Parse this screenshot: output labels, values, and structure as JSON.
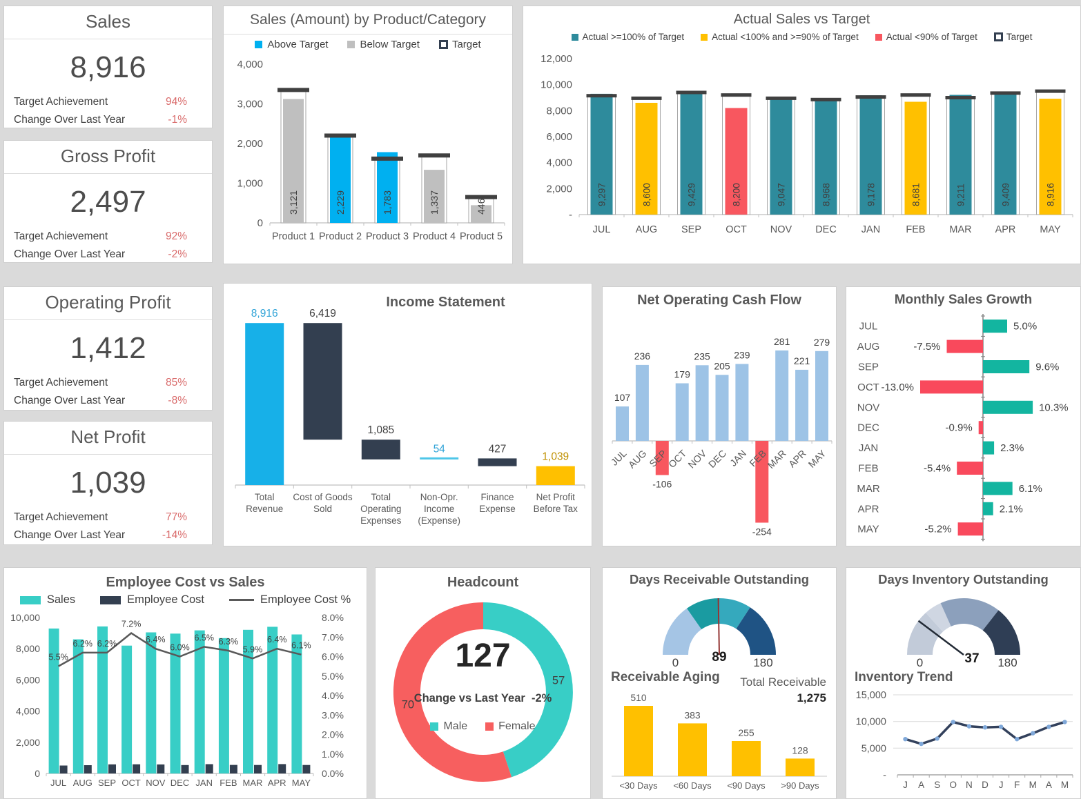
{
  "colors": {
    "teal": "#2E8B9C",
    "gold": "#FFC000",
    "red": "#F8575F",
    "blue": "#00B0F0",
    "gray_bar": "#BFBFBF",
    "dark_navy": "#333F50",
    "target_tick": "#404040",
    "blue_bright": "#17B0E8",
    "income_line": "#4EC6E8",
    "label_blue": "#2FA3D7",
    "label_gold": "#BF9000",
    "light_blue": "#9DC3E6",
    "green": "#13B5A0",
    "growth_red": "#F9495C",
    "turquoise": "#38CEC6",
    "hc_red": "#F75F5F",
    "kpi_red": "#D96A6A",
    "trend_navy": "#33415C",
    "trend_marker": "#7FA8D9",
    "gauge_dro": [
      "#A5C5E5",
      "#1A9BA1",
      "#35A9BD",
      "#1F5384"
    ],
    "gauge_dio": [
      "#C2CBD9",
      "#CFD6E2",
      "#8CA0BC",
      "#2F3E55"
    ],
    "needle_dro": "#943634",
    "needle_dio": "#222A35"
  },
  "kpi_cards": [
    {
      "title": "Sales",
      "value": "8,916",
      "rows": [
        {
          "label": "Target Achievement",
          "value": "94%"
        },
        {
          "label": "Change Over Last Year",
          "value": "-1%"
        }
      ]
    },
    {
      "title": "Gross Profit",
      "value": "2,497",
      "rows": [
        {
          "label": "Target Achievement",
          "value": "92%"
        },
        {
          "label": "Change Over Last Year",
          "value": "-2%"
        }
      ]
    },
    {
      "title": "Operating Profit",
      "value": "1,412",
      "rows": [
        {
          "label": "Target Achievement",
          "value": "85%"
        },
        {
          "label": "Change Over Last Year",
          "value": "-8%"
        }
      ]
    },
    {
      "title": "Net Profit",
      "value": "1,039",
      "rows": [
        {
          "label": "Target Achievement",
          "value": "77%"
        },
        {
          "label": "Change Over Last Year",
          "value": "-14%"
        }
      ]
    }
  ],
  "chart_data": [
    {
      "id": "product_sales",
      "type": "bar",
      "title": "Sales (Amount) by Product/Category",
      "legend": [
        "Above Target",
        "Below Target",
        "Target"
      ],
      "categories": [
        "Product 1",
        "Product 2",
        "Product 3",
        "Product 4",
        "Product 5"
      ],
      "actual": [
        3121,
        2229,
        1783,
        1337,
        446
      ],
      "target": [
        3350,
        2200,
        1620,
        1700,
        650
      ],
      "status": [
        "below",
        "above",
        "above",
        "below",
        "below"
      ],
      "labels": [
        "3,121",
        "2,229",
        "1,783",
        "1,337",
        "446"
      ],
      "ylim": [
        0,
        4000
      ],
      "yticks": [
        "0",
        "1,000",
        "2,000",
        "3,000",
        "4,000"
      ]
    },
    {
      "id": "actual_vs_target",
      "type": "bar",
      "title": "Actual Sales vs Target",
      "legend": [
        "Actual >=100% of Target",
        "Actual <100% and >=90% of Target",
        "Actual <90% of Target",
        "Target"
      ],
      "categories": [
        "JUL",
        "AUG",
        "SEP",
        "OCT",
        "NOV",
        "DEC",
        "JAN",
        "FEB",
        "MAR",
        "APR",
        "MAY"
      ],
      "actual": [
        9297,
        8600,
        9429,
        8200,
        9047,
        8968,
        9178,
        8681,
        9211,
        9409,
        8916
      ],
      "target": [
        9150,
        8950,
        9400,
        9200,
        8950,
        8850,
        9050,
        9200,
        9000,
        9350,
        9500
      ],
      "status": [
        "ge100",
        "ge90",
        "ge100",
        "lt90",
        "ge100",
        "ge100",
        "ge100",
        "ge90",
        "ge100",
        "ge100",
        "ge90"
      ],
      "labels": [
        "9,297",
        "8,600",
        "9,429",
        "8,200",
        "9,047",
        "8,968",
        "9,178",
        "8,681",
        "9,211",
        "9,409",
        "8,916"
      ],
      "ylim": [
        0,
        12000
      ],
      "yticks": [
        "-",
        "2,000",
        "4,000",
        "6,000",
        "8,000",
        "10,000",
        "12,000"
      ]
    },
    {
      "id": "income_statement",
      "type": "waterfall",
      "title": "Income Statement",
      "ylim": [
        0,
        9000
      ],
      "bars": [
        {
          "label_lines": [
            "Total",
            "Revenue"
          ],
          "value_label": "8,916",
          "from": 0,
          "to": 8916,
          "kind": "revenue"
        },
        {
          "label_lines": [
            "Cost of Goods",
            "Sold"
          ],
          "value_label": "6,419",
          "from": 2497,
          "to": 8916,
          "kind": "expense"
        },
        {
          "label_lines": [
            "Total",
            "Operating",
            "Expenses"
          ],
          "value_label": "1,085",
          "from": 1412,
          "to": 2497,
          "kind": "expense"
        },
        {
          "label_lines": [
            "Non-Opr.",
            "Income",
            "(Expense)"
          ],
          "value_label": "54",
          "from": 1412,
          "to": 1466,
          "kind": "income_line"
        },
        {
          "label_lines": [
            "Finance",
            "Expense"
          ],
          "value_label": "427",
          "from": 1039,
          "to": 1466,
          "kind": "expense"
        },
        {
          "label_lines": [
            "Net Profit",
            "Before Tax"
          ],
          "value_label": "1,039",
          "from": 0,
          "to": 1039,
          "kind": "total"
        }
      ]
    },
    {
      "id": "cash_flow",
      "type": "bar",
      "title": "Net Operating Cash Flow",
      "categories": [
        "JUL",
        "AUG",
        "SEP",
        "OCT",
        "NOV",
        "DEC",
        "JAN",
        "FEB",
        "MAR",
        "APR",
        "MAY"
      ],
      "values": [
        107,
        236,
        -106,
        179,
        235,
        205,
        239,
        -254,
        281,
        221,
        279
      ],
      "labels": [
        "107",
        "236",
        "-106",
        "179",
        "235",
        "205",
        "239",
        "-254",
        "281",
        "221",
        "279"
      ]
    },
    {
      "id": "sales_growth",
      "type": "bar",
      "title": "Monthly Sales Growth",
      "categories": [
        "JUL",
        "AUG",
        "SEP",
        "OCT",
        "NOV",
        "DEC",
        "JAN",
        "FEB",
        "MAR",
        "APR",
        "MAY"
      ],
      "values": [
        5.0,
        -7.5,
        9.6,
        -13.0,
        10.3,
        -0.9,
        2.3,
        -5.4,
        6.1,
        2.1,
        -5.2
      ],
      "labels": [
        "5.0%",
        "-7.5%",
        "9.6%",
        "-13.0%",
        "10.3%",
        "-0.9%",
        "2.3%",
        "-5.4%",
        "6.1%",
        "2.1%",
        "-5.2%"
      ]
    },
    {
      "id": "employee_cost",
      "type": "bar",
      "title": "Employee Cost vs Sales",
      "legend": [
        "Sales",
        "Employee Cost",
        "Employee Cost %"
      ],
      "categories": [
        "JUL",
        "AUG",
        "SEP",
        "OCT",
        "NOV",
        "DEC",
        "JAN",
        "FEB",
        "MAR",
        "APR",
        "MAY"
      ],
      "series": [
        {
          "name": "Sales",
          "values": [
            9297,
            8600,
            9429,
            8200,
            9047,
            8968,
            9178,
            8681,
            9211,
            9409,
            8916
          ]
        },
        {
          "name": "Employee Cost",
          "values": [
            511,
            533,
            585,
            590,
            579,
            538,
            597,
            547,
            543,
            602,
            544
          ]
        },
        {
          "name": "Employee Cost %",
          "values": [
            5.5,
            6.2,
            6.2,
            7.2,
            6.4,
            6.0,
            6.5,
            6.3,
            5.9,
            6.4,
            6.1
          ],
          "labels": [
            "5.5%",
            "6.2%",
            "6.2%",
            "7.2%",
            "6.4%",
            "6.0%",
            "6.5%",
            "6.3%",
            "5.9%",
            "6.4%",
            "6.1%"
          ]
        }
      ],
      "ylim_left": [
        0,
        10000
      ],
      "ylim_right": [
        0,
        8
      ],
      "y_left": [
        "0",
        "2,000",
        "4,000",
        "6,000",
        "8,000",
        "10,000"
      ],
      "y_right": [
        "0.0%",
        "1.0%",
        "2.0%",
        "3.0%",
        "4.0%",
        "5.0%",
        "6.0%",
        "7.0%",
        "8.0%"
      ]
    },
    {
      "id": "headcount",
      "type": "pie",
      "title": "Headcount",
      "center_value": "127",
      "note_label": "Change vs Last Year",
      "note_value": "-2%",
      "slices": [
        {
          "name": "Male",
          "value": 57
        },
        {
          "name": "Female",
          "value": 70
        }
      ]
    },
    {
      "id": "days_receivable",
      "type": "bar",
      "title": "Days Receivable Outstanding",
      "gauge": {
        "value": 89,
        "value_label": "89",
        "min": 0,
        "max": 180,
        "min_label": "0",
        "max_label": "180",
        "segments": [
          55,
          90,
          123,
          180
        ]
      },
      "aging": {
        "heading": "Receivable Aging",
        "categories": [
          "<30 Days",
          "<60 Days",
          "<90 Days",
          ">90 Days"
        ],
        "values": [
          510,
          383,
          255,
          128
        ],
        "labels": [
          "510",
          "383",
          "255",
          "128"
        ],
        "total_label": "Total Receivable",
        "total_value": "1,275"
      }
    },
    {
      "id": "days_inventory",
      "type": "line",
      "title": "Days Inventory Outstanding",
      "gauge": {
        "value": 37,
        "value_label": "37",
        "min": 0,
        "max": 180,
        "min_label": "0",
        "max_label": "180",
        "segments": [
          48,
          66,
          128,
          180
        ]
      },
      "trend": {
        "heading": "Inventory Trend",
        "categories": [
          "J",
          "A",
          "S",
          "O",
          "N",
          "D",
          "J",
          "F",
          "M",
          "A",
          "M"
        ],
        "values": [
          6700,
          5800,
          6800,
          9900,
          9100,
          8900,
          9000,
          6700,
          7800,
          9000,
          9900
        ],
        "ylim": [
          0,
          15000
        ],
        "yticks": [
          "-",
          "5,000",
          "10,000",
          "15,000"
        ]
      }
    }
  ]
}
